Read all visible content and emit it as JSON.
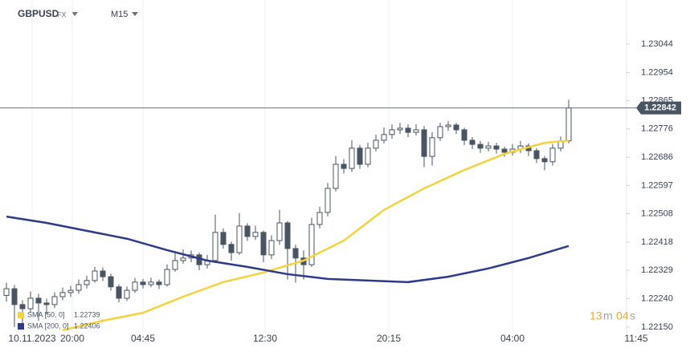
{
  "chart_data": {
    "type": "candlestick",
    "symbol": "GBPUSD",
    "market": "FX",
    "timeframe": "M15",
    "up_color": "#ffffff",
    "down_color": "#4a5563",
    "wick_color": "#4a5563",
    "open": [
      1.2225,
      1.22271,
      1.22221,
      1.22208,
      1.22241,
      1.22226,
      1.22221,
      1.22246,
      1.22259,
      1.22266,
      1.22284,
      1.22297,
      1.22327,
      1.22309,
      1.22277,
      1.22241,
      1.22266,
      1.22292,
      1.22284,
      1.22292,
      1.22284,
      1.22332,
      1.2236,
      1.22368,
      1.22378,
      1.22347,
      1.2236,
      1.22449,
      1.22411,
      1.22385,
      1.22469,
      1.22436,
      1.22449,
      1.22378,
      1.22423,
      1.22479,
      1.22398,
      1.22368,
      1.22347,
      1.22474,
      1.22512,
      1.22588,
      1.22664,
      1.22651,
      1.22715,
      1.22664,
      1.22715,
      1.2274,
      1.22758,
      1.22773,
      1.22778,
      1.22765,
      1.22773,
      1.22689,
      1.22748,
      1.22783,
      1.22788,
      1.22773,
      1.2274,
      1.22727,
      1.22715,
      1.22722,
      1.22712,
      1.22702,
      1.22712,
      1.22722,
      1.22707,
      1.22682,
      1.22672,
      1.22715,
      1.22738
    ],
    "high": [
      1.2229,
      1.22283,
      1.22235,
      1.22262,
      1.22255,
      1.2224,
      1.2226,
      1.22275,
      1.2228,
      1.223,
      1.22312,
      1.2234,
      1.22338,
      1.22318,
      1.22285,
      1.22278,
      1.22305,
      1.22302,
      1.22306,
      1.223,
      1.22348,
      1.22388,
      1.22395,
      1.22392,
      1.22385,
      1.22378,
      1.22505,
      1.22462,
      1.2242,
      1.2251,
      1.22478,
      1.2247,
      1.22455,
      1.2244,
      1.2252,
      1.22485,
      1.2241,
      1.22392,
      1.22495,
      1.2253,
      1.22605,
      1.2269,
      1.2268,
      1.2274,
      1.22725,
      1.22732,
      1.22758,
      1.2278,
      1.2279,
      1.22795,
      1.2279,
      1.2279,
      1.22785,
      1.22765,
      1.22795,
      1.228,
      1.22795,
      1.2278,
      1.2275,
      1.22738,
      1.22735,
      1.22732,
      1.2272,
      1.22728,
      1.22738,
      1.2273,
      1.22715,
      1.2269,
      1.22728,
      1.22752,
      1.22868
    ],
    "low": [
      1.2223,
      1.2215,
      1.2216,
      1.22195,
      1.2217,
      1.2219,
      1.2221,
      1.22235,
      1.22245,
      1.22255,
      1.22272,
      1.2229,
      1.22295,
      1.22265,
      1.22228,
      1.22232,
      1.22258,
      1.22272,
      1.22276,
      1.2227,
      1.22278,
      1.22325,
      1.2235,
      1.22355,
      1.2233,
      1.22335,
      1.22352,
      1.22398,
      1.2236,
      1.22378,
      1.22422,
      1.22425,
      1.22355,
      1.22365,
      1.2241,
      1.223,
      1.2229,
      1.223,
      1.2234,
      1.22462,
      1.225,
      1.22578,
      1.22635,
      1.2264,
      1.2265,
      1.22655,
      1.22705,
      1.2273,
      1.22745,
      1.2276,
      1.2275,
      1.22755,
      1.22655,
      1.2266,
      1.22738,
      1.2277,
      1.2276,
      1.22725,
      1.22712,
      1.227,
      1.22705,
      1.22698,
      1.22688,
      1.22692,
      1.227,
      1.2269,
      1.22668,
      1.22645,
      1.2266,
      1.22705,
      1.2273
    ],
    "close": [
      1.22271,
      1.22221,
      1.22208,
      1.22241,
      1.22226,
      1.22221,
      1.22246,
      1.22259,
      1.22266,
      1.22284,
      1.22297,
      1.22327,
      1.22309,
      1.22277,
      1.22241,
      1.22266,
      1.22292,
      1.22284,
      1.22292,
      1.22284,
      1.22332,
      1.2236,
      1.22368,
      1.22378,
      1.22347,
      1.2236,
      1.22449,
      1.22411,
      1.22385,
      1.22469,
      1.22436,
      1.22449,
      1.22378,
      1.22423,
      1.22479,
      1.22398,
      1.22368,
      1.22347,
      1.22474,
      1.22512,
      1.22588,
      1.22664,
      1.22651,
      1.22715,
      1.22664,
      1.22715,
      1.2274,
      1.22758,
      1.22773,
      1.22778,
      1.22765,
      1.22773,
      1.22689,
      1.22748,
      1.22783,
      1.22788,
      1.22773,
      1.2274,
      1.22727,
      1.22715,
      1.22722,
      1.22712,
      1.22702,
      1.22712,
      1.22722,
      1.22707,
      1.22682,
      1.22672,
      1.22715,
      1.22738,
      1.22842
    ],
    "overlays": [
      {
        "name": "SMA [50, 0]",
        "color": "#f5d33b",
        "x": [
          7,
          12,
          17,
          22,
          27,
          32,
          37,
          42,
          47,
          52,
          57,
          62,
          67,
          70
        ],
        "values": [
          1.2214,
          1.2217,
          1.22195,
          1.22246,
          1.22292,
          1.22322,
          1.2236,
          1.22423,
          1.2252,
          1.22588,
          1.22646,
          1.22697,
          1.22732,
          1.22739
        ]
      },
      {
        "name": "SMA [200, 0]",
        "color": "#2e3a8c",
        "x": [
          0,
          5,
          10,
          15,
          20,
          25,
          30,
          35,
          40,
          45,
          50,
          55,
          60,
          65,
          70
        ],
        "values": [
          1.22499,
          1.22479,
          1.22454,
          1.22429,
          1.22393,
          1.2236,
          1.2234,
          1.22317,
          1.22302,
          1.22297,
          1.22292,
          1.22309,
          1.22335,
          1.22368,
          1.22406
        ]
      }
    ],
    "current_price": 1.22842,
    "xlim": [
      -0.8,
      77.2
    ],
    "ylim": [
      1.22132,
      1.23183
    ],
    "xticks": [
      {
        "value": 3.2,
        "label": "10.11.2023"
      },
      {
        "value": 8.2,
        "label": "20:00"
      },
      {
        "value": 17,
        "label": "04:45"
      },
      {
        "value": 32.2,
        "label": "12:30"
      },
      {
        "value": 47.6,
        "label": "20:15"
      },
      {
        "value": 63,
        "label": "04:00"
      },
      {
        "value": 78.4,
        "label": "11:45"
      }
    ],
    "yticks": [
      1.23044,
      1.22954,
      1.22865,
      1.22776,
      1.22686,
      1.22597,
      1.22508,
      1.22418,
      1.22329,
      {
        "value": 1.2224,
        "label": "1.22240"
      },
      {
        "value": 1.2215,
        "label": "1.22150"
      }
    ],
    "grid": "x",
    "timer": {
      "minutes": "13",
      "minute_unit": "m",
      "seconds": "04",
      "second_unit": "s"
    }
  }
}
